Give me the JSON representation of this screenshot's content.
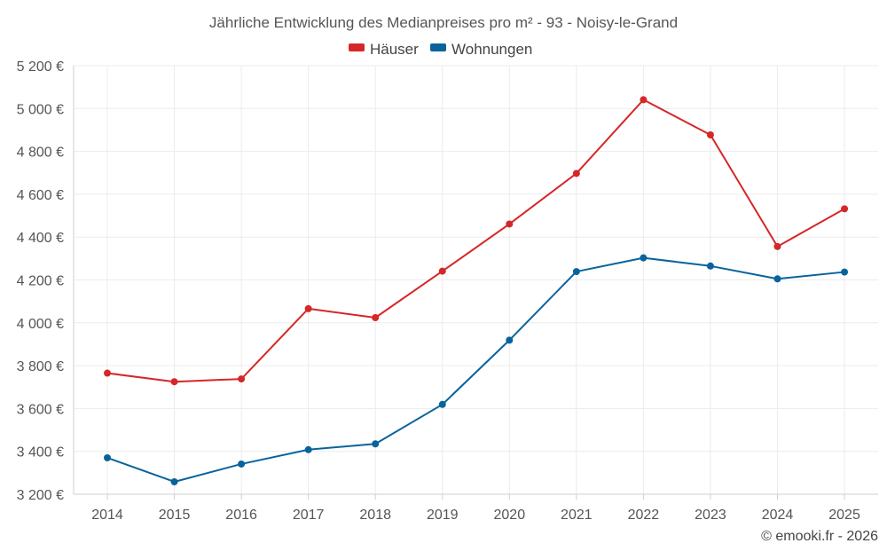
{
  "chart_data": {
    "type": "line",
    "title": "Jährliche Entwicklung des Medianpreises pro m² - 93 - Noisy-le-Grand",
    "categories": [
      "2014",
      "2015",
      "2016",
      "2017",
      "2018",
      "2019",
      "2020",
      "2021",
      "2022",
      "2023",
      "2024",
      "2025"
    ],
    "series": [
      {
        "name": "Häuser",
        "color": "#d62728",
        "values": [
          3765,
          3725,
          3738,
          4066,
          4024,
          4241,
          4461,
          4697,
          5041,
          4877,
          4356,
          4532
        ]
      },
      {
        "name": "Wohnungen",
        "color": "#08639c",
        "values": [
          3370,
          3258,
          3341,
          3408,
          3435,
          3619,
          3919,
          4239,
          4303,
          4265,
          4205,
          4237
        ]
      }
    ],
    "ylim": [
      3200,
      5200
    ],
    "yticks": [
      3200,
      3400,
      3600,
      3800,
      4000,
      4200,
      4400,
      4600,
      4800,
      5000,
      5200
    ],
    "ytick_labels": [
      "3 200 €",
      "3 400 €",
      "3 600 €",
      "3 800 €",
      "4 000 €",
      "4 200 €",
      "4 400 €",
      "4 600 €",
      "4 800 €",
      "5 000 €",
      "5 200 €"
    ],
    "xlabel": "",
    "ylabel": "",
    "grid": true,
    "legend_position": "top-center"
  },
  "copyright": "© emooki.fr - 2026"
}
